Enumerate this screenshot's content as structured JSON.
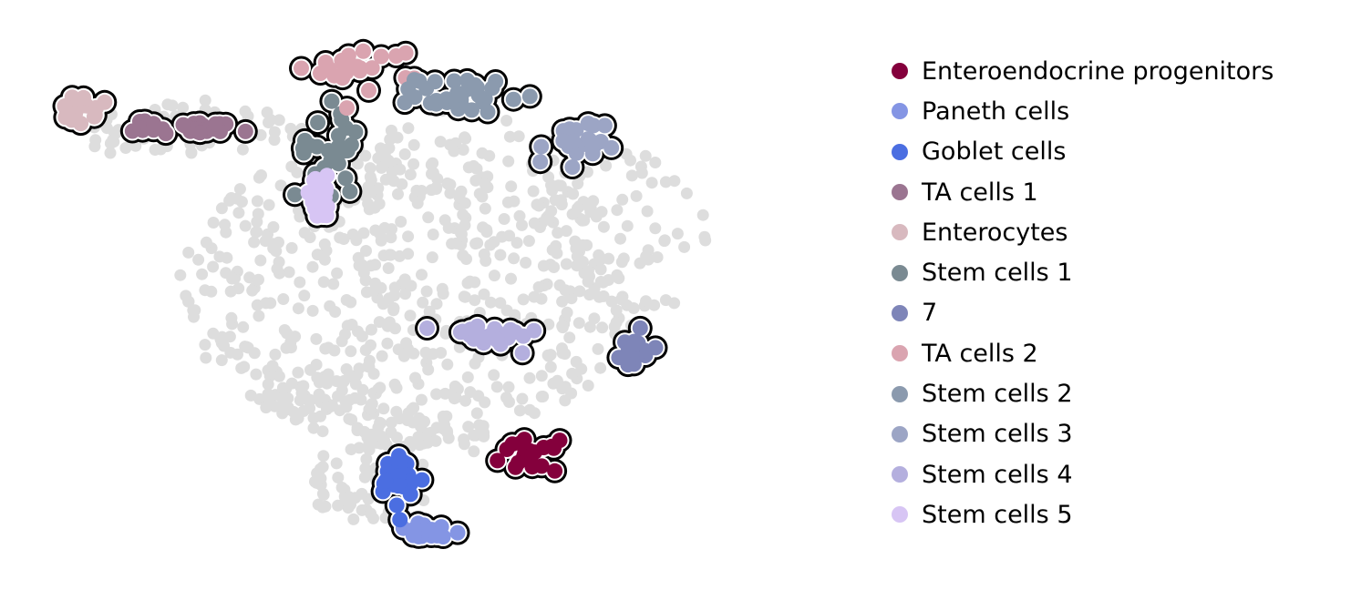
{
  "chart_data": {
    "type": "scatter",
    "title": "",
    "xlabel": "",
    "ylabel": "",
    "axes_visible": false,
    "grid": false,
    "legend_placement": "right",
    "background_points_color": "#dddddd",
    "highlight_outline_color": "#000000",
    "xlim": [
      0,
      100
    ],
    "ylim": [
      0,
      100
    ],
    "background_regions": [
      {
        "cx": 47,
        "cy": 50,
        "rx": 28,
        "ry": 28,
        "n": 500
      },
      {
        "cx": 38,
        "cy": 30,
        "rx": 9,
        "ry": 7,
        "n": 60
      },
      {
        "cx": 21,
        "cy": 80,
        "rx": 13,
        "ry": 5,
        "n": 50
      },
      {
        "cx": 11,
        "cy": 78,
        "rx": 3,
        "ry": 3,
        "n": 12
      },
      {
        "cx": 42,
        "cy": 16,
        "rx": 8,
        "ry": 8,
        "n": 80
      },
      {
        "cx": 52,
        "cy": 26,
        "rx": 6,
        "ry": 6,
        "n": 30
      },
      {
        "cx": 72,
        "cy": 60,
        "rx": 10,
        "ry": 16,
        "n": 80
      },
      {
        "cx": 53,
        "cy": 68,
        "rx": 14,
        "ry": 16,
        "n": 70
      }
    ],
    "series": [
      {
        "name": "Enteroendocrine progenitors",
        "color": "#84003c",
        "center": [
          61,
          20
        ],
        "spread": [
          3.0,
          2.5
        ],
        "n": 20
      },
      {
        "name": "Paneth cells",
        "color": "#8495e4",
        "center": [
          49,
          6
        ],
        "spread": [
          3.5,
          1.5
        ],
        "n": 22
      },
      {
        "name": "Goblet cells",
        "color": "#4b6ee1",
        "center": [
          45.5,
          15
        ],
        "spread": [
          2.5,
          4.5
        ],
        "n": 30
      },
      {
        "name": "TA cells 1",
        "color": "#9b7591",
        "center": [
          21,
          80
        ],
        "spread": [
          6.5,
          1.2
        ],
        "n": 30
      },
      {
        "name": "Enterocytes",
        "color": "#d8b9bf",
        "center": [
          7,
          83
        ],
        "spread": [
          2.0,
          2.2
        ],
        "n": 18
      },
      {
        "name": "Stem cells 1",
        "color": "#7a8a92",
        "center": [
          37,
          76
        ],
        "spread": [
          3.5,
          8.0
        ],
        "n": 28
      },
      {
        "name": "7",
        "color": "#7e85b8",
        "center": [
          73.5,
          40
        ],
        "spread": [
          1.5,
          4.0
        ],
        "n": 16
      },
      {
        "name": "TA cells 2",
        "color": "#daa4b0",
        "center": [
          41,
          91
        ],
        "spread": [
          6.5,
          3.5
        ],
        "n": 22
      },
      {
        "name": "Stem cells 2",
        "color": "#8b9aae",
        "center": [
          53,
          86
        ],
        "spread": [
          5.0,
          3.0
        ],
        "n": 36
      },
      {
        "name": "Stem cells 3",
        "color": "#9ca5c5",
        "center": [
          66,
          76
        ],
        "spread": [
          3.5,
          5.0
        ],
        "n": 26
      },
      {
        "name": "Stem cells 4",
        "color": "#b4afde",
        "center": [
          56,
          42
        ],
        "spread": [
          5.5,
          2.0
        ],
        "n": 26
      },
      {
        "name": "Stem cells 5",
        "color": "#d7c5f4",
        "center": [
          36,
          67
        ],
        "spread": [
          2.0,
          3.5
        ],
        "n": 26
      }
    ]
  }
}
